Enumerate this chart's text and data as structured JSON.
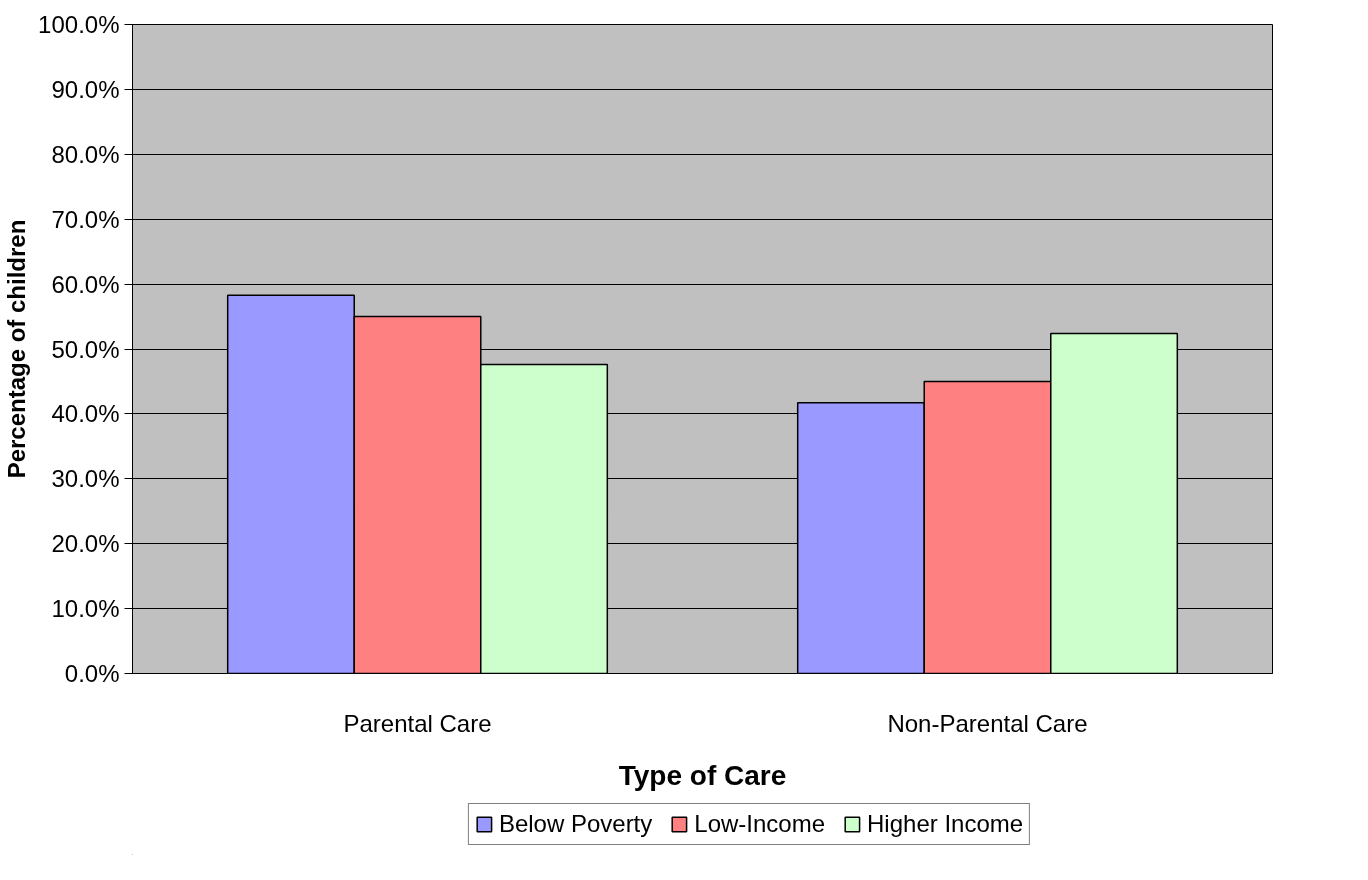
{
  "chart_data": {
    "type": "bar",
    "xlabel": "Type of Care",
    "ylabel": "Percentage of children",
    "categories": [
      "Parental Care",
      "Non-Parental Care"
    ],
    "series": [
      {
        "name": "Below Poverty",
        "color": "#9999ff",
        "values": [
          58.3,
          41.7
        ]
      },
      {
        "name": "Low-Income",
        "color": "#ff8080",
        "values": [
          55.0,
          45.0
        ]
      },
      {
        "name": "Higher Income",
        "color": "#ccffcc",
        "values": [
          47.6,
          52.4
        ]
      }
    ],
    "ylim": [
      0,
      100
    ],
    "yticks": [
      {
        "value": 0,
        "label": "0.0%"
      },
      {
        "value": 10,
        "label": "10.0%"
      },
      {
        "value": 20,
        "label": "20.0%"
      },
      {
        "value": 30,
        "label": "30.0%"
      },
      {
        "value": 40,
        "label": "40.0%"
      },
      {
        "value": 50,
        "label": "50.0%"
      },
      {
        "value": 60,
        "label": "60.0%"
      },
      {
        "value": 70,
        "label": "70.0%"
      },
      {
        "value": 80,
        "label": "80.0%"
      },
      {
        "value": 90,
        "label": "90.0%"
      },
      {
        "value": 100,
        "label": "100.0%"
      }
    ],
    "grid": "y",
    "legend": "bottom"
  }
}
